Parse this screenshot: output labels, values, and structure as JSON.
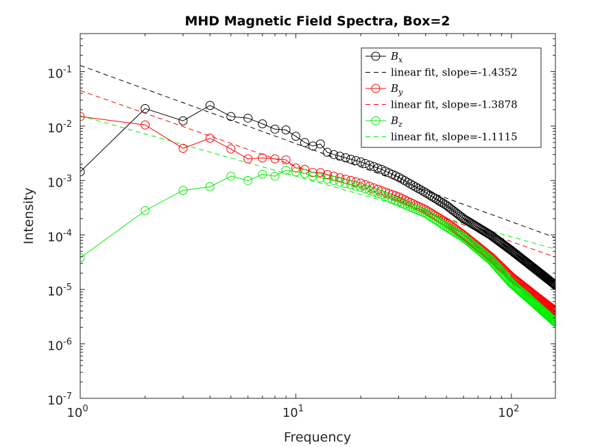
{
  "chart_data": {
    "type": "line",
    "title": "MHD Magnetic Field Spectra, Box=2",
    "xlabel": "Frequency",
    "ylabel": "Intensity",
    "xscale": "log",
    "yscale": "log",
    "xlim": [
      1,
      160
    ],
    "ylim": [
      1e-07,
      0.5
    ],
    "x_ticks": [
      {
        "value": 1,
        "base": "10",
        "exp": "0"
      },
      {
        "value": 10,
        "base": "10",
        "exp": "1"
      },
      {
        "value": 100,
        "base": "10",
        "exp": "2"
      }
    ],
    "y_ticks": [
      {
        "value": 1e-07,
        "base": "10",
        "exp": "-7"
      },
      {
        "value": 1e-06,
        "base": "10",
        "exp": "-6"
      },
      {
        "value": 1e-05,
        "base": "10",
        "exp": "-5"
      },
      {
        "value": 0.0001,
        "base": "10",
        "exp": "-4"
      },
      {
        "value": 0.001,
        "base": "10",
        "exp": "-3"
      },
      {
        "value": 0.01,
        "base": "10",
        "exp": "-2"
      },
      {
        "value": 0.1,
        "base": "10",
        "exp": "-1"
      }
    ],
    "grid": false,
    "legend_position": "top-right",
    "series": [
      {
        "name": "B",
        "sub": "x",
        "color": "#000000",
        "marker": "circle",
        "anchors": [
          [
            1,
            0.00145
          ],
          [
            2,
            0.021
          ],
          [
            3,
            0.0125
          ],
          [
            4,
            0.024
          ],
          [
            5,
            0.015
          ],
          [
            6,
            0.014
          ],
          [
            7,
            0.011
          ],
          [
            8,
            0.0088
          ],
          [
            9,
            0.0085
          ],
          [
            10,
            0.0065
          ],
          [
            11,
            0.005
          ],
          [
            12,
            0.0043
          ],
          [
            13,
            0.0047
          ],
          [
            14,
            0.0033
          ],
          [
            15,
            0.003
          ],
          [
            20,
            0.0022
          ],
          [
            25,
            0.0016
          ],
          [
            30,
            0.00115
          ],
          [
            40,
            0.0006
          ],
          [
            50,
            0.00035
          ],
          [
            60,
            0.0002
          ],
          [
            80,
            0.0001
          ],
          [
            100,
            5.2e-05
          ],
          [
            130,
            2.3e-05
          ],
          [
            160,
            1.2e-05
          ]
        ]
      },
      {
        "name": "B",
        "sub": "y",
        "color": "#ff0000",
        "marker": "circle",
        "anchors": [
          [
            1,
            0.015
          ],
          [
            2,
            0.0105
          ],
          [
            3,
            0.0039
          ],
          [
            4,
            0.006
          ],
          [
            5,
            0.0038
          ],
          [
            6,
            0.0025
          ],
          [
            7,
            0.0026
          ],
          [
            8,
            0.0025
          ],
          [
            9,
            0.0024
          ],
          [
            10,
            0.0017
          ],
          [
            11,
            0.0016
          ],
          [
            12,
            0.0014
          ],
          [
            13,
            0.0014
          ],
          [
            15,
            0.0012
          ],
          [
            20,
            0.0009
          ],
          [
            25,
            0.00065
          ],
          [
            30,
            0.0005
          ],
          [
            40,
            0.00029
          ],
          [
            50,
            0.00017
          ],
          [
            60,
            0.0001
          ],
          [
            80,
            4e-05
          ],
          [
            100,
            1.7e-05
          ],
          [
            130,
            7.5e-06
          ],
          [
            160,
            4e-06
          ]
        ]
      },
      {
        "name": "B",
        "sub": "z",
        "color": "#00ee00",
        "marker": "circle",
        "anchors": [
          [
            1,
            3.8e-05
          ],
          [
            2,
            0.00028
          ],
          [
            3,
            0.00066
          ],
          [
            4,
            0.00077
          ],
          [
            5,
            0.0012
          ],
          [
            6,
            0.001
          ],
          [
            7,
            0.0013
          ],
          [
            8,
            0.0012
          ],
          [
            9,
            0.00155
          ],
          [
            10,
            0.00145
          ],
          [
            11,
            0.00135
          ],
          [
            12,
            0.0012
          ],
          [
            15,
            0.001
          ],
          [
            20,
            0.00075
          ],
          [
            25,
            0.00055
          ],
          [
            30,
            0.0004
          ],
          [
            40,
            0.00025
          ],
          [
            50,
            0.00014
          ],
          [
            60,
            9e-05
          ],
          [
            80,
            3.5e-05
          ],
          [
            100,
            1.3e-05
          ],
          [
            130,
            5.2e-06
          ],
          [
            160,
            2.5e-06
          ]
        ]
      }
    ],
    "fits": [
      {
        "label": "linear fit, slope=-1.4352",
        "color": "#000000",
        "slope": -1.4352,
        "y_at_1": 0.13,
        "style": "dashed"
      },
      {
        "label": "linear fit, slope=-1.3878",
        "color": "#ff0000",
        "slope": -1.3878,
        "y_at_1": 0.045,
        "style": "dashed"
      },
      {
        "label": "linear fit, slope=-1.1115",
        "color": "#00ee00",
        "slope": -1.1115,
        "y_at_1": 0.0155,
        "style": "dashed"
      }
    ]
  }
}
